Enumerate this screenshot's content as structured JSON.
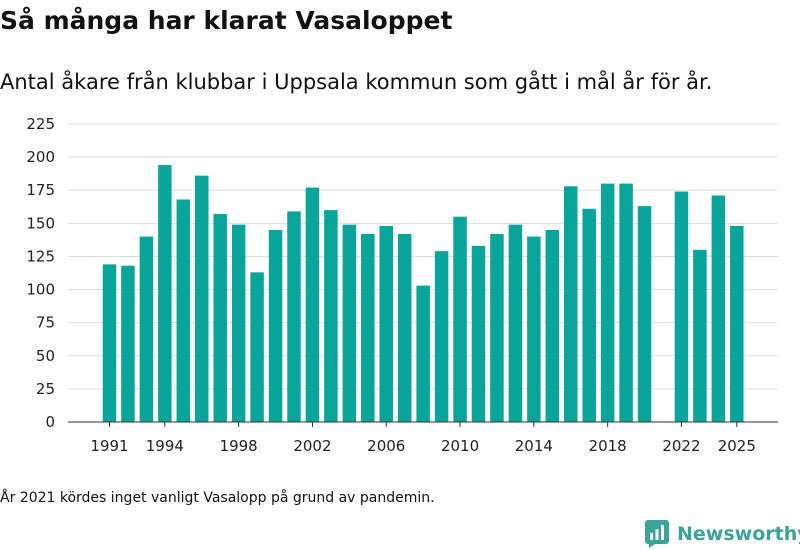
{
  "title": "Så många har klarat Vasaloppet",
  "subtitle": "Antal åkare från klubbar i Uppsala kommun som gått i mål år för år.",
  "footnote": "År 2021 kördes inget vanligt Vasalopp på grund av pandemin.",
  "brand": {
    "name": "Newsworthy",
    "color": "#3aa39a"
  },
  "chart_data": {
    "type": "bar",
    "bar_color": "#0aa59a",
    "categories": [
      1991,
      1992,
      1993,
      1994,
      1995,
      1996,
      1997,
      1998,
      1999,
      2000,
      2001,
      2002,
      2003,
      2004,
      2005,
      2006,
      2007,
      2008,
      2009,
      2010,
      2011,
      2012,
      2013,
      2014,
      2015,
      2016,
      2017,
      2018,
      2019,
      2020,
      2021,
      2022,
      2023,
      2024,
      2025
    ],
    "values": [
      119,
      118,
      140,
      194,
      168,
      186,
      157,
      149,
      113,
      145,
      159,
      177,
      160,
      149,
      142,
      148,
      142,
      103,
      129,
      155,
      133,
      142,
      149,
      140,
      145,
      178,
      161,
      180,
      180,
      163,
      null,
      174,
      130,
      171,
      148
    ],
    "x_tick_labels": [
      "1991",
      "1994",
      "1998",
      "2002",
      "2006",
      "2010",
      "2014",
      "2018",
      "2022",
      "2025"
    ],
    "y_ticks": [
      0,
      25,
      50,
      75,
      100,
      125,
      150,
      175,
      200,
      225
    ],
    "ylim": [
      0,
      225
    ],
    "grid": true,
    "legend": "none"
  }
}
